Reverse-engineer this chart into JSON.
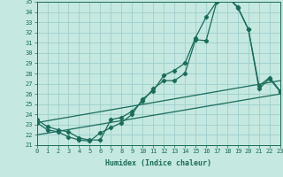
{
  "xlabel": "Humidex (Indice chaleur)",
  "bg_color": "#c5e8e0",
  "grid_color": "#9ecece",
  "line_color": "#1a6b5a",
  "xmin": 0,
  "xmax": 23,
  "ymin": 21,
  "ymax": 35,
  "x_data": [
    0,
    1,
    2,
    3,
    4,
    5,
    6,
    7,
    8,
    9,
    10,
    11,
    12,
    13,
    14,
    15,
    16,
    17,
    18,
    19,
    20,
    21,
    22,
    23
  ],
  "line1": [
    23.5,
    22.8,
    22.5,
    22.3,
    21.7,
    21.5,
    21.5,
    23.5,
    23.7,
    24.3,
    25.3,
    26.5,
    27.3,
    27.3,
    28.0,
    31.3,
    31.2,
    35.0,
    35.5,
    34.5,
    32.3,
    26.8,
    27.6,
    26.3
  ],
  "line2": [
    23.2,
    22.5,
    22.3,
    21.8,
    21.5,
    21.4,
    22.2,
    22.7,
    23.2,
    24.0,
    25.5,
    26.3,
    27.8,
    28.3,
    29.0,
    31.5,
    33.5,
    35.0,
    35.5,
    34.4,
    32.3,
    26.5,
    27.5,
    26.2
  ],
  "diag_low": [
    22.0,
    26.0
  ],
  "diag_high": [
    23.2,
    27.3
  ]
}
